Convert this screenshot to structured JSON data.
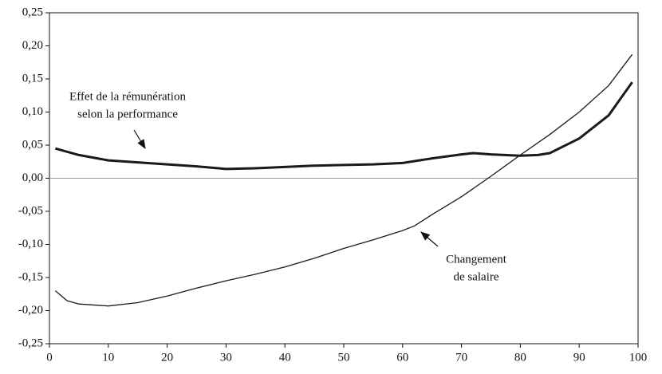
{
  "chart_data": {
    "type": "line",
    "xlim": [
      0,
      100
    ],
    "xticks": [
      0,
      10,
      20,
      30,
      40,
      50,
      60,
      70,
      80,
      90,
      100
    ],
    "ylim": [
      -0.25,
      0.25
    ],
    "yticks": [
      {
        "value": -0.25,
        "label": "-0,25"
      },
      {
        "value": -0.2,
        "label": "-0,20"
      },
      {
        "value": -0.15,
        "label": "-0,15"
      },
      {
        "value": -0.1,
        "label": "-0,10"
      },
      {
        "value": -0.05,
        "label": "-0,05"
      },
      {
        "value": 0,
        "label": "0,00"
      },
      {
        "value": 0.05,
        "label": "0,05"
      },
      {
        "value": 0.1,
        "label": "0,10"
      },
      {
        "value": 0.15,
        "label": "0,15"
      },
      {
        "value": 0.2,
        "label": "0,20"
      },
      {
        "value": 0.25,
        "label": "0,25"
      }
    ],
    "series": [
      {
        "color": "#1a1a1a",
        "x": [
          1,
          5,
          10,
          15,
          20,
          25,
          30,
          35,
          40,
          45,
          50,
          55,
          60,
          65,
          70,
          72,
          75,
          80,
          83,
          85,
          90,
          95,
          99
        ],
        "values": [
          0.045,
          0.035,
          0.027,
          0.024,
          0.021,
          0.018,
          0.014,
          0.015,
          0.017,
          0.019,
          0.02,
          0.021,
          0.023,
          0.03,
          0.036,
          0.038,
          0.036,
          0.034,
          0.035,
          0.038,
          0.06,
          0.095,
          0.145
        ]
      },
      {
        "color": "#1a1a1a",
        "x": [
          1,
          3,
          5,
          10,
          15,
          20,
          25,
          30,
          35,
          40,
          45,
          50,
          55,
          60,
          62,
          65,
          70,
          75,
          80,
          85,
          90,
          95,
          99
        ],
        "values": [
          -0.17,
          -0.185,
          -0.19,
          -0.193,
          -0.188,
          -0.178,
          -0.166,
          -0.155,
          -0.145,
          -0.134,
          -0.121,
          -0.106,
          -0.093,
          -0.079,
          -0.072,
          -0.055,
          -0.028,
          0.003,
          0.035,
          0.066,
          0.1,
          0.14,
          0.187
        ]
      }
    ],
    "annotations": [
      {
        "lines": [
          "Effet de la rémunération",
          "selon la performance"
        ]
      },
      {
        "lines": [
          "Changement",
          "de salaire"
        ]
      }
    ]
  }
}
